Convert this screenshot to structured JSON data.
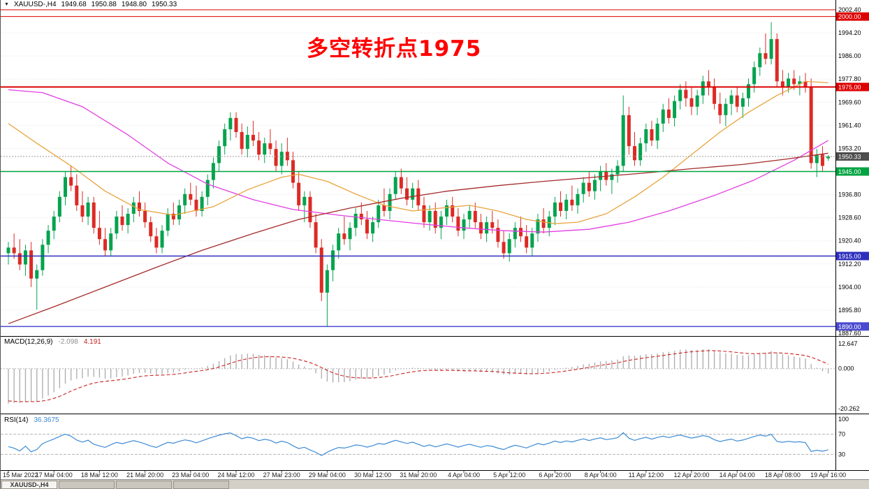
{
  "header": {
    "menu_arrow": "▼",
    "symbol_period": "XAUUSD-,H4",
    "open": "1949.68",
    "high": "1950.88",
    "low": "1948.80",
    "close": "1950.33"
  },
  "annotation": {
    "text": "多空转折点1975",
    "color": "#ff0000"
  },
  "chart_data": {
    "type": "candlestick",
    "symbol": "XAUUSD-",
    "timeframe": "H4",
    "ylim": [
      1887.6,
      2002.4
    ],
    "price_axis_labels": [
      "2002.40",
      "1994.20",
      "1986.00",
      "1977.80",
      "1969.60",
      "1961.40",
      "1953.20",
      "1945.00",
      "1936.80",
      "1928.60",
      "1920.40",
      "1912.20",
      "1904.00",
      "1895.80",
      "1887.60"
    ],
    "time_axis_labels": [
      "15 Mar 2022",
      "17 Mar 04:00",
      "18 Mar 12:00",
      "21 Mar 20:00",
      "23 Mar 04:00",
      "24 Mar 12:00",
      "27 Mar 23:00",
      "29 Mar 04:00",
      "30 Mar 12:00",
      "31 Mar 20:00",
      "4 Apr 04:00",
      "5 Apr 12:00",
      "6 Apr 20:00",
      "8 Apr 04:00",
      "11 Apr 12:00",
      "12 Apr 20:00",
      "14 Apr 04:00",
      "18 Apr 08:00",
      "19 Apr 16:00"
    ],
    "colors": {
      "up": "#05a34f",
      "down": "#dd2a24"
    },
    "hlines": [
      {
        "price": 2002.4,
        "label": "",
        "color": "#dd0000",
        "width": 1
      },
      {
        "price": 2000.0,
        "label": "2000.00",
        "color": "#dd0000",
        "width": 1
      },
      {
        "price": 1975.0,
        "label": "1975.00",
        "color": "#dd0000",
        "width": 2
      },
      {
        "price": 1945.0,
        "label": "1945.00",
        "color": "#00a341",
        "width": 1.5
      },
      {
        "price": 1915.0,
        "label": "1915.00",
        "color": "#2e2ebe",
        "width": 1.5
      },
      {
        "price": 1890.0,
        "label": "1890.00",
        "color": "#4a4ad0",
        "width": 1.5
      }
    ],
    "current_price": {
      "value": 1950.33,
      "label": "1950.33",
      "color": "#4d4d4d"
    },
    "moving_averages": [
      {
        "name": "slow-magenta",
        "color": "#e23ee2",
        "points": [
          [
            0,
            1974
          ],
          [
            6,
            1973
          ],
          [
            13,
            1968
          ],
          [
            21,
            1958
          ],
          [
            28,
            1948
          ],
          [
            35,
            1940.5
          ],
          [
            43,
            1935
          ],
          [
            50,
            1931.5
          ],
          [
            58,
            1929.5
          ],
          [
            65,
            1928
          ],
          [
            72,
            1926.5
          ],
          [
            80,
            1925
          ],
          [
            87,
            1924
          ],
          [
            94,
            1923.5
          ],
          [
            102,
            1924.5
          ],
          [
            109,
            1927
          ],
          [
            116,
            1931
          ],
          [
            124,
            1936.5
          ],
          [
            131,
            1942
          ],
          [
            138,
            1949
          ],
          [
            144,
            1956
          ]
        ]
      },
      {
        "name": "mid-orange",
        "color": "#e8a33d",
        "points": [
          [
            0,
            1962
          ],
          [
            5,
            1955
          ],
          [
            11,
            1947
          ],
          [
            17,
            1938
          ],
          [
            23,
            1931.5
          ],
          [
            29,
            1929.5
          ],
          [
            36,
            1932.5
          ],
          [
            42,
            1938.5
          ],
          [
            48,
            1943
          ],
          [
            51,
            1944
          ],
          [
            56,
            1941.5
          ],
          [
            61,
            1937
          ],
          [
            66,
            1933
          ],
          [
            71,
            1931
          ],
          [
            76,
            1932
          ],
          [
            81,
            1933
          ],
          [
            86,
            1931
          ],
          [
            91,
            1928
          ],
          [
            96,
            1926.5
          ],
          [
            100,
            1927
          ],
          [
            105,
            1930
          ],
          [
            110,
            1936
          ],
          [
            115,
            1943
          ],
          [
            120,
            1951
          ],
          [
            125,
            1959
          ],
          [
            130,
            1966
          ],
          [
            135,
            1972
          ],
          [
            140,
            1977
          ],
          [
            144,
            1976.5
          ]
        ]
      },
      {
        "name": "trend-darkred",
        "color": "#a52a2a",
        "points": [
          [
            0,
            1891
          ],
          [
            8,
            1897
          ],
          [
            17,
            1904
          ],
          [
            26,
            1911
          ],
          [
            34,
            1917
          ],
          [
            43,
            1923
          ],
          [
            51,
            1928
          ],
          [
            60,
            1932
          ],
          [
            69,
            1935.5
          ],
          [
            77,
            1938
          ],
          [
            86,
            1940
          ],
          [
            94,
            1941.5
          ],
          [
            103,
            1943
          ],
          [
            112,
            1944.5
          ],
          [
            120,
            1946
          ],
          [
            129,
            1947.5
          ],
          [
            137,
            1949.5
          ],
          [
            144,
            1951.5
          ]
        ]
      }
    ],
    "candles": [
      [
        1916,
        1920,
        1912,
        1918
      ],
      [
        1918,
        1923,
        1914,
        1916
      ],
      [
        1916,
        1921,
        1910,
        1912
      ],
      [
        1912,
        1919,
        1908,
        1917
      ],
      [
        1917,
        1920,
        1904,
        1907
      ],
      [
        1907,
        1912,
        1896,
        1910
      ],
      [
        1910,
        1921,
        1908,
        1919
      ],
      [
        1919,
        1926,
        1916,
        1924
      ],
      [
        1924,
        1931,
        1921,
        1929
      ],
      [
        1929,
        1938,
        1927,
        1936
      ],
      [
        1936,
        1945,
        1933,
        1943
      ],
      [
        1943,
        1947,
        1938,
        1940
      ],
      [
        1940,
        1944,
        1931,
        1933
      ],
      [
        1933,
        1938,
        1927,
        1929
      ],
      [
        1929,
        1936,
        1926,
        1934
      ],
      [
        1934,
        1936,
        1923,
        1925
      ],
      [
        1925,
        1931,
        1919,
        1921
      ],
      [
        1921,
        1925,
        1915,
        1917
      ],
      [
        1917,
        1925,
        1915,
        1923
      ],
      [
        1923,
        1931,
        1921,
        1929
      ],
      [
        1929,
        1933,
        1924,
        1926
      ],
      [
        1926,
        1932,
        1923,
        1930
      ],
      [
        1930,
        1936,
        1927,
        1934
      ],
      [
        1934,
        1938,
        1929,
        1931
      ],
      [
        1931,
        1934,
        1925,
        1927
      ],
      [
        1927,
        1929,
        1920,
        1922
      ],
      [
        1922,
        1925,
        1916,
        1918
      ],
      [
        1918,
        1926,
        1916,
        1924
      ],
      [
        1924,
        1932,
        1922,
        1930
      ],
      [
        1930,
        1934,
        1926,
        1928
      ],
      [
        1928,
        1935,
        1926,
        1933
      ],
      [
        1933,
        1939,
        1930,
        1937
      ],
      [
        1937,
        1941,
        1933,
        1935
      ],
      [
        1935,
        1940,
        1929,
        1931
      ],
      [
        1931,
        1938,
        1929,
        1936
      ],
      [
        1936,
        1944,
        1933,
        1942
      ],
      [
        1942,
        1950,
        1939,
        1948
      ],
      [
        1948,
        1956,
        1945,
        1954
      ],
      [
        1954,
        1962,
        1951,
        1960
      ],
      [
        1960,
        1966,
        1956,
        1964
      ],
      [
        1964,
        1966,
        1957,
        1959
      ],
      [
        1959,
        1962,
        1951,
        1953
      ],
      [
        1953,
        1961,
        1950,
        1958
      ],
      [
        1958,
        1963,
        1954,
        1956
      ],
      [
        1956,
        1959,
        1949,
        1951
      ],
      [
        1951,
        1957,
        1948,
        1955
      ],
      [
        1955,
        1960,
        1951,
        1953
      ],
      [
        1953,
        1956,
        1945,
        1947
      ],
      [
        1947,
        1955,
        1944,
        1952
      ],
      [
        1952,
        1957,
        1947,
        1949
      ],
      [
        1949,
        1952,
        1939,
        1941
      ],
      [
        1941,
        1945,
        1931,
        1933
      ],
      [
        1933,
        1938,
        1927,
        1936
      ],
      [
        1936,
        1938,
        1925,
        1927
      ],
      [
        1927,
        1930,
        1916,
        1918
      ],
      [
        1918,
        1921,
        1899,
        1902
      ],
      [
        1902,
        1912,
        1890,
        1910
      ],
      [
        1910,
        1919,
        1906,
        1917
      ],
      [
        1917,
        1925,
        1914,
        1923
      ],
      [
        1923,
        1929,
        1919,
        1921
      ],
      [
        1921,
        1927,
        1917,
        1925
      ],
      [
        1925,
        1932,
        1922,
        1930
      ],
      [
        1930,
        1934,
        1926,
        1928
      ],
      [
        1928,
        1931,
        1921,
        1923
      ],
      [
        1923,
        1929,
        1920,
        1927
      ],
      [
        1927,
        1935,
        1925,
        1933
      ],
      [
        1933,
        1939,
        1929,
        1931
      ],
      [
        1931,
        1939,
        1928,
        1937
      ],
      [
        1937,
        1945,
        1935,
        1943
      ],
      [
        1943,
        1946,
        1937,
        1939
      ],
      [
        1939,
        1943,
        1933,
        1935
      ],
      [
        1935,
        1941,
        1932,
        1939
      ],
      [
        1939,
        1942,
        1931,
        1933
      ],
      [
        1933,
        1936,
        1925,
        1927
      ],
      [
        1927,
        1933,
        1924,
        1931
      ],
      [
        1931,
        1934,
        1923,
        1925
      ],
      [
        1925,
        1931,
        1921,
        1929
      ],
      [
        1929,
        1935,
        1926,
        1933
      ],
      [
        1933,
        1936,
        1927,
        1929
      ],
      [
        1929,
        1932,
        1922,
        1924
      ],
      [
        1924,
        1930,
        1921,
        1928
      ],
      [
        1928,
        1933,
        1925,
        1931
      ],
      [
        1931,
        1934,
        1925,
        1927
      ],
      [
        1927,
        1930,
        1921,
        1923
      ],
      [
        1923,
        1929,
        1920,
        1927
      ],
      [
        1927,
        1931,
        1923,
        1925
      ],
      [
        1925,
        1928,
        1918,
        1920
      ],
      [
        1920,
        1924,
        1914,
        1916
      ],
      [
        1916,
        1923,
        1913,
        1921
      ],
      [
        1921,
        1927,
        1918,
        1925
      ],
      [
        1925,
        1929,
        1920,
        1922
      ],
      [
        1922,
        1926,
        1916,
        1918
      ],
      [
        1918,
        1925,
        1915,
        1923
      ],
      [
        1923,
        1930,
        1920,
        1928
      ],
      [
        1928,
        1932,
        1923,
        1925
      ],
      [
        1925,
        1931,
        1922,
        1929
      ],
      [
        1929,
        1936,
        1926,
        1934
      ],
      [
        1934,
        1938,
        1929,
        1931
      ],
      [
        1931,
        1937,
        1928,
        1935
      ],
      [
        1935,
        1940,
        1931,
        1933
      ],
      [
        1933,
        1939,
        1930,
        1937
      ],
      [
        1937,
        1943,
        1934,
        1941
      ],
      [
        1941,
        1945,
        1936,
        1938
      ],
      [
        1938,
        1944,
        1935,
        1942
      ],
      [
        1942,
        1947,
        1938,
        1945
      ],
      [
        1945,
        1948,
        1940,
        1942
      ],
      [
        1942,
        1946,
        1937,
        1944
      ],
      [
        1944,
        1949,
        1941,
        1947
      ],
      [
        1947,
        1972,
        1945,
        1965
      ],
      [
        1965,
        1968,
        1951,
        1954
      ],
      [
        1954,
        1959,
        1947,
        1949
      ],
      [
        1949,
        1957,
        1947,
        1955
      ],
      [
        1955,
        1962,
        1952,
        1960
      ],
      [
        1960,
        1963,
        1954,
        1956
      ],
      [
        1956,
        1964,
        1953,
        1962
      ],
      [
        1962,
        1969,
        1959,
        1967
      ],
      [
        1967,
        1971,
        1962,
        1964
      ],
      [
        1964,
        1972,
        1961,
        1970
      ],
      [
        1970,
        1976,
        1967,
        1974
      ],
      [
        1974,
        1977,
        1968,
        1971
      ],
      [
        1971,
        1975,
        1965,
        1968
      ],
      [
        1968,
        1974,
        1965,
        1972
      ],
      [
        1972,
        1979,
        1969,
        1977
      ],
      [
        1977,
        1981,
        1972,
        1975
      ],
      [
        1975,
        1978,
        1967,
        1969
      ],
      [
        1969,
        1973,
        1962,
        1965
      ],
      [
        1965,
        1971,
        1961,
        1969
      ],
      [
        1969,
        1974,
        1965,
        1972
      ],
      [
        1972,
        1975,
        1966,
        1968
      ],
      [
        1968,
        1973,
        1964,
        1971
      ],
      [
        1971,
        1978,
        1968,
        1976
      ],
      [
        1976,
        1984,
        1973,
        1982
      ],
      [
        1982,
        1989,
        1979,
        1987
      ],
      [
        1987,
        1994,
        1983,
        1985
      ],
      [
        1985,
        1998,
        1983,
        1992
      ],
      [
        1992,
        1994,
        1975,
        1977
      ],
      [
        1977,
        1981,
        1972,
        1975
      ],
      [
        1975,
        1980,
        1973,
        1978
      ],
      [
        1978,
        1981,
        1974,
        1976
      ],
      [
        1976,
        1979,
        1972,
        1977
      ],
      [
        1977,
        1980,
        1973,
        1975
      ],
      [
        1975,
        1978,
        1946,
        1948
      ],
      [
        1948,
        1953,
        1943,
        1951
      ],
      [
        1951,
        1954,
        1945,
        1947
      ],
      [
        1949.68,
        1950.88,
        1948.8,
        1950.33
      ]
    ]
  },
  "macd": {
    "label": "MACD(12,26,9)",
    "value_main": "-2.098",
    "value_signal": "4.191",
    "axis_labels": [
      "12.647",
      "0.000",
      "-20.262"
    ],
    "range": [
      -20.262,
      12.647
    ],
    "seed": {
      "ema12": 1931,
      "ema26": 1949,
      "signal": -16
    },
    "histogram_color": "#ababab",
    "signal_color": "#cc2222"
  },
  "rsi": {
    "label": "RSI(14)",
    "value": "36.3675",
    "axis_labels": [
      "100",
      "70",
      "30"
    ],
    "levels": [
      70,
      30
    ],
    "seed": {
      "avg_gain": 1.0,
      "avg_loss": 1.2
    },
    "color": "#3d8bd4"
  },
  "tabs": [
    {
      "label": "XAUUSD-,H4",
      "active": true
    },
    {
      "label": "",
      "active": false
    },
    {
      "label": "",
      "active": false
    },
    {
      "label": "",
      "active": false
    }
  ]
}
